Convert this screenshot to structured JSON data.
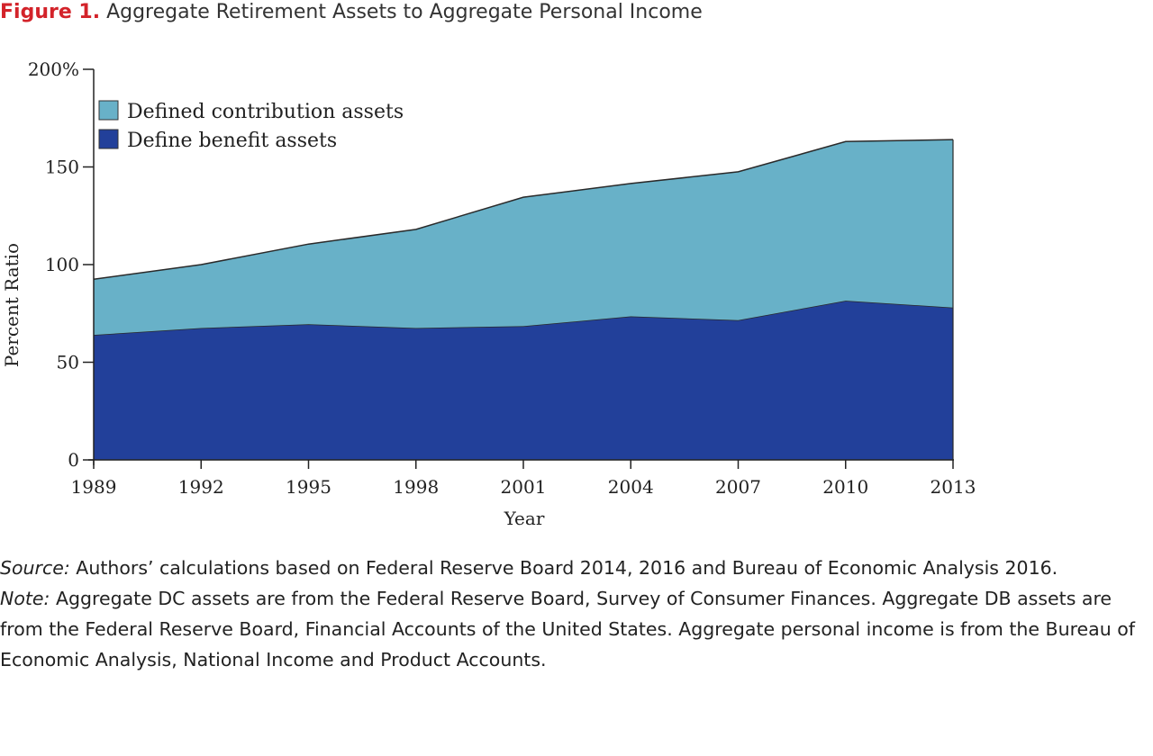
{
  "figure": {
    "label": "Figure 1.",
    "title": "Aggregate Retirement Assets to Aggregate Personal Income"
  },
  "chart_data": {
    "type": "area",
    "stacked": true,
    "x": [
      "1989",
      "1992",
      "1995",
      "1998",
      "2001",
      "2004",
      "2007",
      "2010",
      "2013"
    ],
    "series": [
      {
        "name": "Define benefit assets",
        "color": "#22409a",
        "values": [
          64,
          67.5,
          69.5,
          67.5,
          68.5,
          73.5,
          71.5,
          81.5,
          78
        ]
      },
      {
        "name": "Defined contribution assets",
        "color": "#68b1c8",
        "values": [
          28.5,
          32.5,
          41,
          50.5,
          66,
          68,
          76,
          81.5,
          86
        ]
      }
    ],
    "xlabel": "Year",
    "ylabel": "Percent Ratio",
    "ylim": [
      0,
      200
    ],
    "yticks": [
      0,
      50,
      100,
      150,
      200
    ],
    "ytick_labels": [
      "0",
      "50",
      "100",
      "150",
      "200%"
    ],
    "legend_order": [
      "Defined contribution assets",
      "Define benefit assets"
    ],
    "legend_placement": "top-left",
    "grid": false
  },
  "source": {
    "label": "Source:",
    "text": " Authors’ calculations based on Federal Reserve Board 2014, 2016 and Bureau of Economic Analysis 2016."
  },
  "note": {
    "label": "Note:",
    "text": " Aggregate DC assets are from the Federal Reserve Board, Survey of Consumer Finances. Aggregate DB assets are from the Federal Reserve Board, Financial Accounts of the United States. Aggregate personal income is from the Bureau of Economic Analysis, National Income and Product Accounts."
  }
}
